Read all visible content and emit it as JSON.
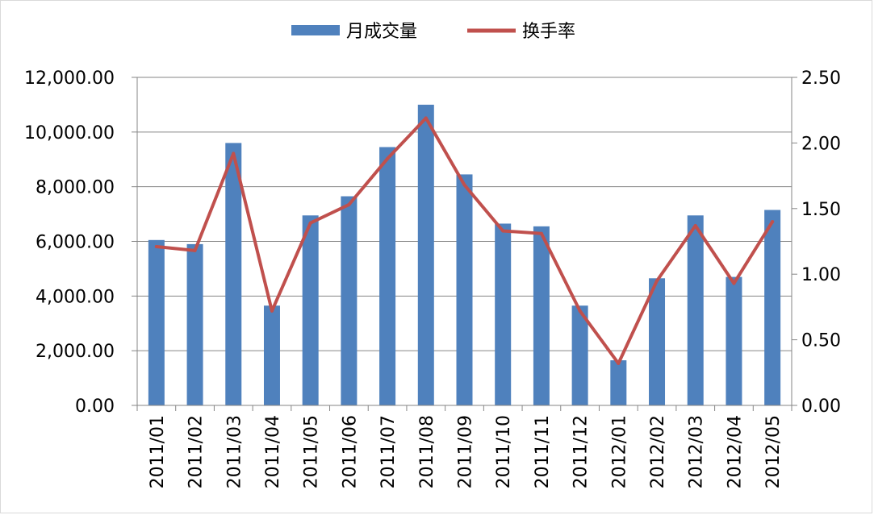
{
  "chart_data": {
    "type": "bar",
    "categories": [
      "2011/01",
      "2011/02",
      "2011/03",
      "2011/04",
      "2011/05",
      "2011/06",
      "2011/07",
      "2011/08",
      "2011/09",
      "2011/10",
      "2011/11",
      "2011/12",
      "2012/01",
      "2012/02",
      "2012/03",
      "2012/04",
      "2012/05"
    ],
    "series": [
      {
        "name": "月成交量",
        "type": "bar",
        "axis": "left",
        "color": "#4f81bd",
        "values": [
          6050,
          5900,
          9600,
          3650,
          6950,
          7650,
          9450,
          11000,
          8450,
          6650,
          6550,
          3650,
          1650,
          4650,
          6950,
          4700,
          7150
        ]
      },
      {
        "name": "换手率",
        "type": "line",
        "axis": "right",
        "color": "#c0504d",
        "values": [
          1.21,
          1.18,
          1.92,
          0.72,
          1.39,
          1.53,
          1.88,
          2.19,
          1.68,
          1.33,
          1.31,
          0.72,
          0.32,
          0.95,
          1.37,
          0.93,
          1.4
        ]
      }
    ],
    "y_left": {
      "ylim": [
        0,
        12000
      ],
      "ticks": [
        "0.00",
        "2,000.00",
        "4,000.00",
        "6,000.00",
        "8,000.00",
        "10,000.00",
        "12,000.00"
      ]
    },
    "y_right": {
      "ylim": [
        0,
        2.5
      ],
      "ticks": [
        "0.00",
        "0.50",
        "1.00",
        "1.50",
        "2.00",
        "2.50"
      ]
    },
    "grid": true,
    "legend_position": "top"
  }
}
